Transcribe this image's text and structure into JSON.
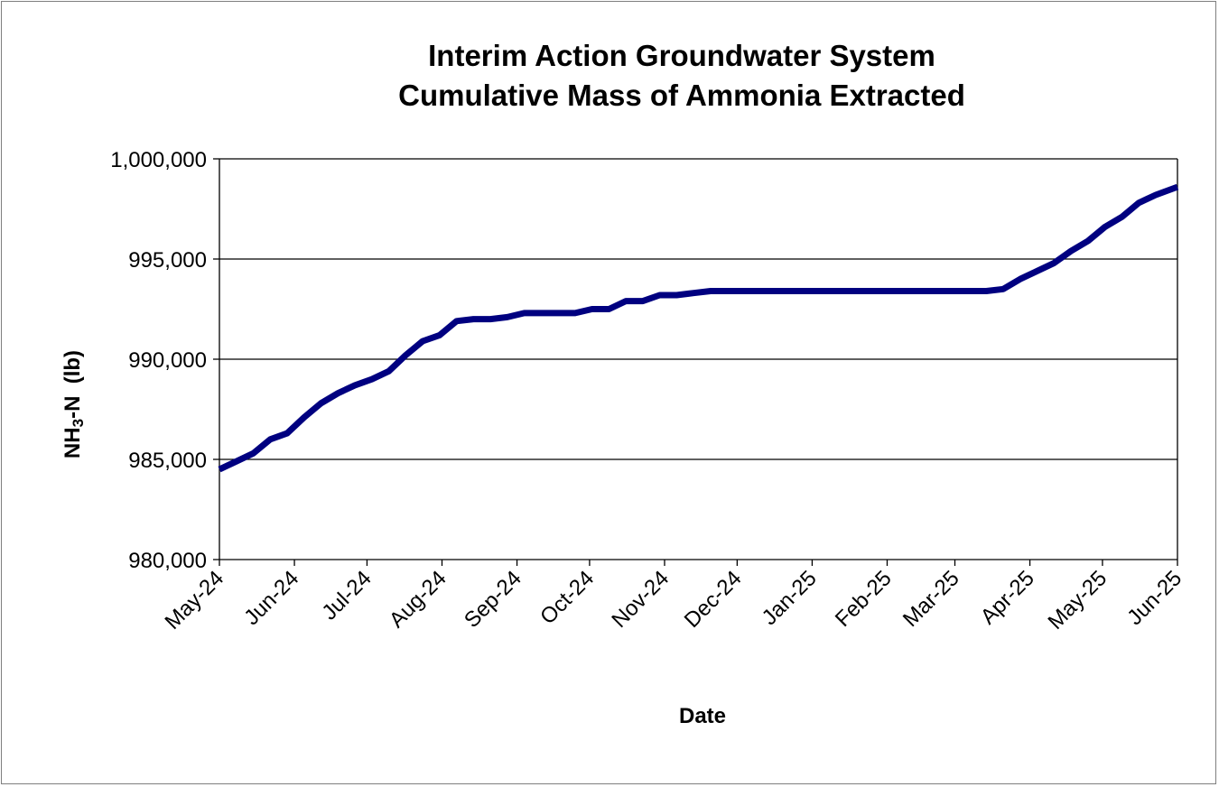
{
  "chart_data": {
    "type": "line",
    "title_lines": [
      "Interim Action Groundwater System",
      "Cumulative Mass of Ammonia Extracted"
    ],
    "xlabel": "Date",
    "ylabel": {
      "main": "NH",
      "sub": "3",
      "rest": "-N  (lb)"
    },
    "ylim": [
      980000,
      1000000
    ],
    "yticks": [
      980000,
      985000,
      990000,
      995000,
      1000000
    ],
    "ytick_labels": [
      "980,000",
      "985,000",
      "990,000",
      "995,000",
      "1,000,000"
    ],
    "xlim": [
      "2024-05-01",
      "2025-06-01"
    ],
    "xticks": [
      "2024-05-01",
      "2024-06-01",
      "2024-07-01",
      "2024-08-01",
      "2024-09-01",
      "2024-10-01",
      "2024-11-01",
      "2024-12-01",
      "2025-01-01",
      "2025-02-01",
      "2025-03-01",
      "2025-04-01",
      "2025-05-01",
      "2025-06-01"
    ],
    "xtick_labels": [
      "May-24",
      "Jun-24",
      "Jul-24",
      "Aug-24",
      "Sep-24",
      "Oct-24",
      "Nov-24",
      "Dec-24",
      "Jan-25",
      "Feb-25",
      "Mar-25",
      "Apr-25",
      "May-25",
      "Jun-25"
    ],
    "grid": "horizontal",
    "line_color": "#000080",
    "series": [
      {
        "x": [
          "2024-05-01",
          "2024-05-08",
          "2024-05-15",
          "2024-05-22",
          "2024-05-29",
          "2024-06-05",
          "2024-06-12",
          "2024-06-19",
          "2024-06-26",
          "2024-07-03",
          "2024-07-10",
          "2024-07-17",
          "2024-07-24",
          "2024-07-31",
          "2024-08-07",
          "2024-08-14",
          "2024-08-21",
          "2024-08-28",
          "2024-09-04",
          "2024-09-11",
          "2024-09-18",
          "2024-09-25",
          "2024-10-02",
          "2024-10-09",
          "2024-10-16",
          "2024-10-23",
          "2024-10-30",
          "2024-11-06",
          "2024-11-13",
          "2024-11-20",
          "2024-11-27",
          "2024-12-04",
          "2025-01-01",
          "2025-02-01",
          "2025-03-01",
          "2025-03-14",
          "2025-03-21",
          "2025-03-28",
          "2025-04-04",
          "2025-04-11",
          "2025-04-18",
          "2025-04-25",
          "2025-05-02",
          "2025-05-09",
          "2025-05-16",
          "2025-05-23",
          "2025-06-01"
        ],
        "y": [
          984500,
          984900,
          985300,
          986000,
          986300,
          987100,
          987800,
          988300,
          988700,
          989000,
          989400,
          990200,
          990900,
          991200,
          991900,
          992000,
          992000,
          992100,
          992300,
          992300,
          992300,
          992300,
          992500,
          992500,
          992900,
          992900,
          993200,
          993200,
          993300,
          993400,
          993400,
          993400,
          993400,
          993400,
          993400,
          993400,
          993500,
          994000,
          994400,
          994800,
          995400,
          995900,
          996600,
          997100,
          997800,
          998200,
          998600
        ]
      }
    ]
  }
}
